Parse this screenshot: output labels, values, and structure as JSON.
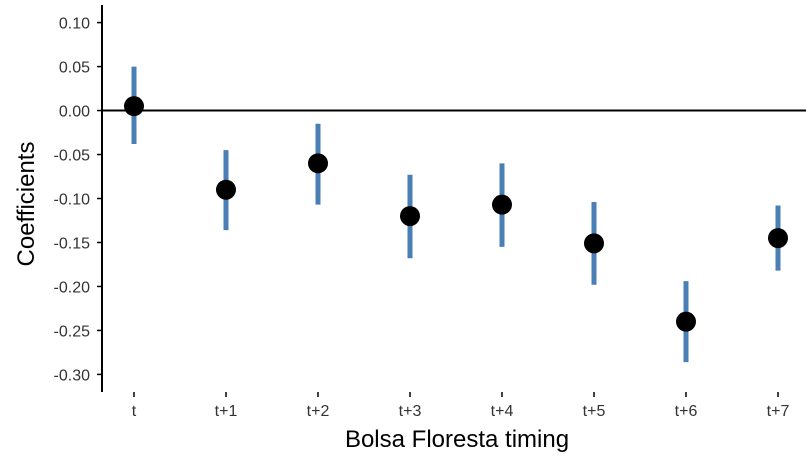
{
  "chart_data": {
    "type": "scatter",
    "title": "",
    "xlabel": "Bolsa Floresta timing",
    "ylabel": "Coefficients",
    "categories": [
      "t",
      "t+1",
      "t+2",
      "t+3",
      "t+4",
      "t+5",
      "t+6",
      "t+7"
    ],
    "estimates": [
      0.005,
      -0.09,
      -0.06,
      -0.12,
      -0.107,
      -0.151,
      -0.24,
      -0.145
    ],
    "ci_lower": [
      -0.038,
      -0.136,
      -0.107,
      -0.168,
      -0.155,
      -0.198,
      -0.286,
      -0.182
    ],
    "ci_upper": [
      0.05,
      -0.045,
      -0.015,
      -0.073,
      -0.06,
      -0.104,
      -0.194,
      -0.108
    ],
    "yticks": [
      "0.10",
      "0.05",
      "0.00",
      "-0.05",
      "-0.10",
      "-0.15",
      "-0.20",
      "-0.25",
      "-0.30"
    ],
    "ylim": [
      -0.32,
      0.12
    ],
    "reference_line": 0,
    "grid": false,
    "colors": {
      "point": "#000000",
      "errorbar": "#4a7fb5",
      "axis": "#000000"
    }
  }
}
